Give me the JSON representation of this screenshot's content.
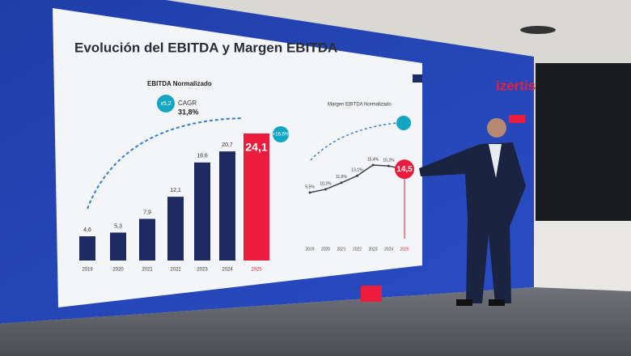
{
  "slide": {
    "title": "Evolución del EBITDA y Margen EBITDA",
    "brand": "izertis"
  },
  "chart_data": [
    {
      "type": "bar",
      "title": "EBITDA Normalizado",
      "categories": [
        "2019",
        "2020",
        "2021",
        "2022",
        "2023",
        "2024",
        "2025"
      ],
      "values": [
        4.6,
        5.3,
        7.9,
        12.1,
        18.6,
        20.7,
        24.1
      ],
      "value_labels": [
        "4,6",
        "5,3",
        "7,9",
        "12,1",
        "18,6",
        "20,7",
        "24,1"
      ],
      "colors": [
        "#1e2b63",
        "#1e2b63",
        "#1e2b63",
        "#1e2b63",
        "#1e2b63",
        "#1e2b63",
        "#ec1c3c"
      ],
      "annotations": [
        "x5,2",
        "CAGR",
        "31,8%",
        "+16,6%"
      ]
    },
    {
      "type": "line",
      "title": "Margen EBITDA Normalizado",
      "categories": [
        "2019",
        "2020",
        "2021",
        "2022",
        "2023",
        "2024",
        "2025"
      ],
      "values": [
        9.5,
        10.2,
        11.6,
        13.1,
        15.4,
        15.2,
        14.5
      ],
      "value_labels": [
        "9,5%",
        "10,2%",
        "11,6%",
        "13,1%",
        "15,4%",
        "15,2%",
        "14,5"
      ],
      "color": "#3a3f4a"
    }
  ]
}
